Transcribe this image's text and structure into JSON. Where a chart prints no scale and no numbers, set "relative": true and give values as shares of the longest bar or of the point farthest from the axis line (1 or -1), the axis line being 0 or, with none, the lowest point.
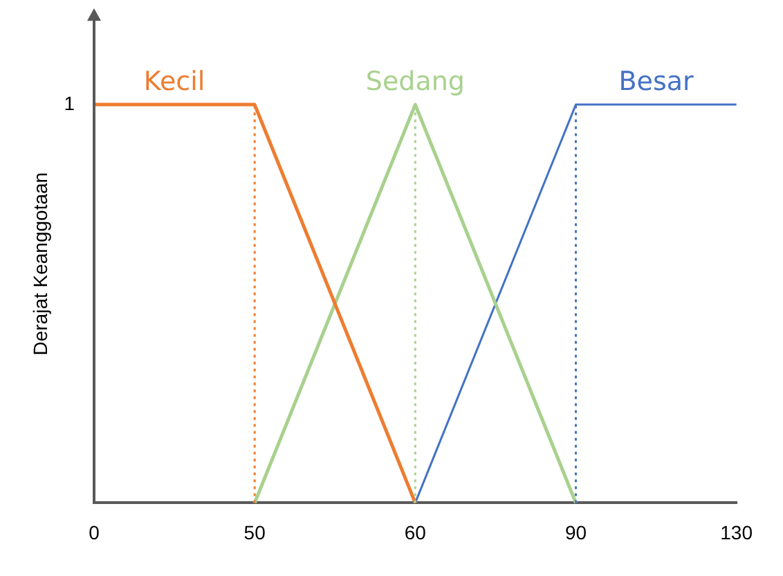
{
  "chart_data": {
    "type": "line",
    "ylabel": "Derajat Keanggotaan",
    "categories": [
      "0",
      "50",
      "60",
      "90",
      "130"
    ],
    "series": [
      {
        "name": "Kecil",
        "color": "#ed7d31",
        "values": [
          1,
          1,
          0,
          null,
          null
        ]
      },
      {
        "name": "Sedang",
        "color": "#a9d18e",
        "values": [
          null,
          0,
          1,
          0,
          null
        ]
      },
      {
        "name": "Besar",
        "color": "#4472c4",
        "values": [
          null,
          null,
          0,
          1,
          1
        ]
      }
    ],
    "relative": true,
    "annotations": [
      "1"
    ],
    "ref_lines": [
      {
        "axis": "x",
        "value": "50",
        "color": "#ed7d31",
        "line_style": "dotted"
      },
      {
        "axis": "x",
        "value": "60",
        "color": "#a9d18e",
        "line_style": "dotted"
      },
      {
        "axis": "x",
        "value": "90",
        "color": "#4472c4",
        "line_style": "dotted"
      }
    ],
    "grid": false,
    "legend": false,
    "marker": "none",
    "line_style": "solid"
  }
}
